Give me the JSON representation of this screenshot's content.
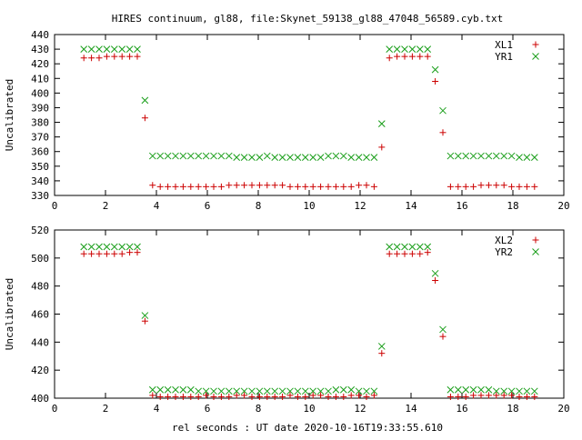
{
  "title": "HIRES continuum, gl88, file:Skynet_59138_gl88_47048_56589.cyb.txt",
  "xlabel": "rel seconds : UT date 2020-10-16T19:33:55.610",
  "colors": {
    "xl": "#cc0000",
    "yr": "#1a9e1a"
  },
  "chart_data": [
    {
      "type": "scatter",
      "ylabel": "Uncalibrated",
      "xlim": [
        0,
        20
      ],
      "ylim": [
        330,
        440
      ],
      "xticks": [
        0,
        2,
        4,
        6,
        8,
        10,
        12,
        14,
        16,
        18,
        20
      ],
      "yticks": [
        330,
        340,
        350,
        360,
        370,
        380,
        390,
        400,
        410,
        420,
        430,
        440
      ],
      "grid": false,
      "legend": "top-right",
      "series": [
        {
          "name": "XL1",
          "marker": "plus",
          "x": [
            1.15,
            1.45,
            1.75,
            2.05,
            2.35,
            2.65,
            2.95,
            3.25,
            3.55,
            3.85,
            4.15,
            4.45,
            4.75,
            5.05,
            5.35,
            5.65,
            5.95,
            6.25,
            6.55,
            6.85,
            7.15,
            7.45,
            7.75,
            8.05,
            8.35,
            8.65,
            8.95,
            9.25,
            9.55,
            9.85,
            10.15,
            10.45,
            10.75,
            11.05,
            11.35,
            11.65,
            11.95,
            12.25,
            12.55,
            12.85,
            13.15,
            13.45,
            13.75,
            14.05,
            14.35,
            14.65,
            14.95,
            15.25,
            15.55,
            15.85,
            16.15,
            16.45,
            16.75,
            17.05,
            17.35,
            17.65,
            17.95,
            18.25,
            18.55,
            18.85
          ],
          "y": [
            424,
            424,
            424,
            425,
            425,
            425,
            425,
            425,
            383,
            337,
            336,
            336,
            336,
            336,
            336,
            336,
            336,
            336,
            336,
            337,
            337,
            337,
            337,
            337,
            337,
            337,
            337,
            336,
            336,
            336,
            336,
            336,
            336,
            336,
            336,
            336,
            337,
            337,
            336,
            363,
            424,
            425,
            425,
            425,
            425,
            425,
            408,
            373,
            336,
            336,
            336,
            336,
            337,
            337,
            337,
            337,
            336,
            336,
            336,
            336
          ]
        },
        {
          "name": "YR1",
          "marker": "cross",
          "x": [
            1.15,
            1.45,
            1.75,
            2.05,
            2.35,
            2.65,
            2.95,
            3.25,
            3.55,
            3.85,
            4.15,
            4.45,
            4.75,
            5.05,
            5.35,
            5.65,
            5.95,
            6.25,
            6.55,
            6.85,
            7.15,
            7.45,
            7.75,
            8.05,
            8.35,
            8.65,
            8.95,
            9.25,
            9.55,
            9.85,
            10.15,
            10.45,
            10.75,
            11.05,
            11.35,
            11.65,
            11.95,
            12.25,
            12.55,
            12.85,
            13.15,
            13.45,
            13.75,
            14.05,
            14.35,
            14.65,
            14.95,
            15.25,
            15.55,
            15.85,
            16.15,
            16.45,
            16.75,
            17.05,
            17.35,
            17.65,
            17.95,
            18.25,
            18.55,
            18.85
          ],
          "y": [
            430,
            430,
            430,
            430,
            430,
            430,
            430,
            430,
            395,
            357,
            357,
            357,
            357,
            357,
            357,
            357,
            357,
            357,
            357,
            357,
            356,
            356,
            356,
            356,
            357,
            356,
            356,
            356,
            356,
            356,
            356,
            356,
            357,
            357,
            357,
            356,
            356,
            356,
            356,
            379,
            430,
            430,
            430,
            430,
            430,
            430,
            416,
            388,
            357,
            357,
            357,
            357,
            357,
            357,
            357,
            357,
            357,
            356,
            356,
            356
          ]
        }
      ]
    },
    {
      "type": "scatter",
      "ylabel": "Uncalibrated",
      "xlim": [
        0,
        20
      ],
      "ylim": [
        400,
        520
      ],
      "xticks": [
        0,
        2,
        4,
        6,
        8,
        10,
        12,
        14,
        16,
        18,
        20
      ],
      "yticks": [
        400,
        420,
        440,
        460,
        480,
        500,
        520
      ],
      "grid": false,
      "legend": "top-right",
      "series": [
        {
          "name": "XL2",
          "marker": "plus",
          "x": [
            1.15,
            1.45,
            1.75,
            2.05,
            2.35,
            2.65,
            2.95,
            3.25,
            3.55,
            3.85,
            4.15,
            4.45,
            4.75,
            5.05,
            5.35,
            5.65,
            5.95,
            6.25,
            6.55,
            6.85,
            7.15,
            7.45,
            7.75,
            8.05,
            8.35,
            8.65,
            8.95,
            9.25,
            9.55,
            9.85,
            10.15,
            10.45,
            10.75,
            11.05,
            11.35,
            11.65,
            11.95,
            12.25,
            12.55,
            12.85,
            13.15,
            13.45,
            13.75,
            14.05,
            14.35,
            14.65,
            14.95,
            15.25,
            15.55,
            15.85,
            16.15,
            16.45,
            16.75,
            17.05,
            17.35,
            17.65,
            17.95,
            18.25,
            18.55,
            18.85
          ],
          "y": [
            503,
            503,
            503,
            503,
            503,
            503,
            504,
            504,
            455,
            402,
            401,
            401,
            401,
            401,
            401,
            401,
            402,
            401,
            401,
            401,
            402,
            402,
            401,
            401,
            401,
            401,
            401,
            402,
            401,
            401,
            402,
            402,
            401,
            401,
            401,
            402,
            402,
            401,
            402,
            432,
            503,
            503,
            503,
            503,
            503,
            504,
            484,
            444,
            401,
            401,
            401,
            402,
            402,
            402,
            402,
            402,
            402,
            401,
            401,
            401
          ]
        },
        {
          "name": "YR2",
          "marker": "cross",
          "x": [
            1.15,
            1.45,
            1.75,
            2.05,
            2.35,
            2.65,
            2.95,
            3.25,
            3.55,
            3.85,
            4.15,
            4.45,
            4.75,
            5.05,
            5.35,
            5.65,
            5.95,
            6.25,
            6.55,
            6.85,
            7.15,
            7.45,
            7.75,
            8.05,
            8.35,
            8.65,
            8.95,
            9.25,
            9.55,
            9.85,
            10.15,
            10.45,
            10.75,
            11.05,
            11.35,
            11.65,
            11.95,
            12.25,
            12.55,
            12.85,
            13.15,
            13.45,
            13.75,
            14.05,
            14.35,
            14.65,
            14.95,
            15.25,
            15.55,
            15.85,
            16.15,
            16.45,
            16.75,
            17.05,
            17.35,
            17.65,
            17.95,
            18.25,
            18.55,
            18.85
          ],
          "y": [
            508,
            508,
            508,
            508,
            508,
            508,
            508,
            508,
            459,
            406,
            406,
            406,
            406,
            406,
            406,
            405,
            405,
            405,
            405,
            405,
            405,
            405,
            405,
            405,
            405,
            405,
            405,
            405,
            405,
            405,
            405,
            405,
            405,
            406,
            406,
            406,
            405,
            405,
            405,
            437,
            508,
            508,
            508,
            508,
            508,
            508,
            489,
            449,
            406,
            406,
            406,
            406,
            406,
            406,
            405,
            405,
            405,
            405,
            405,
            405
          ]
        }
      ]
    }
  ]
}
